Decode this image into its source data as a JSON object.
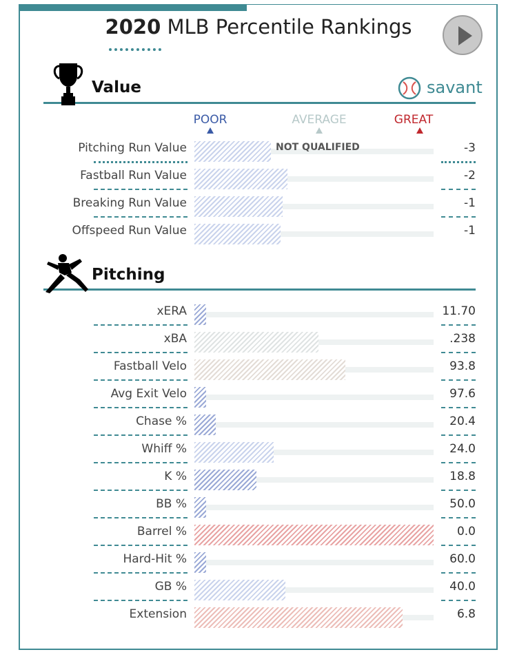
{
  "header": {
    "year": "2020",
    "title_rest": "MLB Percentile Rankings"
  },
  "sections": {
    "value": {
      "title": "Value"
    },
    "pitching": {
      "title": "Pitching"
    }
  },
  "brand": {
    "name": "savant"
  },
  "scale": {
    "poor": "POOR",
    "average": "AVERAGE",
    "great": "GREAT"
  },
  "chart_data": {
    "type": "bar",
    "orientation": "horizontal",
    "xlim": [
      0,
      100
    ],
    "note": "NOT QUALIFIED",
    "value_rows": [
      {
        "label": "Pitching Run Value",
        "percentile": 32,
        "value": "-3",
        "style": "hatch-lblue"
      },
      {
        "label": "Fastball Run Value",
        "percentile": 39,
        "value": "-2",
        "style": "hatch-lblue"
      },
      {
        "label": "Breaking Run Value",
        "percentile": 37,
        "value": "-1",
        "style": "hatch-lblue"
      },
      {
        "label": "Offspeed Run Value",
        "percentile": 36,
        "value": "-1",
        "style": "hatch-lblue"
      }
    ],
    "pitching_rows": [
      {
        "label": "xERA",
        "percentile": 5,
        "value": "11.70",
        "style": "hatch-blue"
      },
      {
        "label": "xBA",
        "percentile": 52,
        "value": ".238",
        "style": "hatch-grey"
      },
      {
        "label": "Fastball Velo",
        "percentile": 63,
        "value": "93.8",
        "style": "hatch-beige"
      },
      {
        "label": "Avg Exit Velo",
        "percentile": 5,
        "value": "97.6",
        "style": "hatch-blue"
      },
      {
        "label": "Chase %",
        "percentile": 9,
        "value": "20.4",
        "style": "hatch-blue"
      },
      {
        "label": "Whiff %",
        "percentile": 33,
        "value": "24.0",
        "style": "hatch-lblue"
      },
      {
        "label": "K %",
        "percentile": 26,
        "value": "18.8",
        "style": "hatch-blue"
      },
      {
        "label": "BB %",
        "percentile": 5,
        "value": "50.0",
        "style": "hatch-blue"
      },
      {
        "label": "Barrel %",
        "percentile": 100,
        "value": "0.0",
        "style": "hatch-red"
      },
      {
        "label": "Hard-Hit %",
        "percentile": 5,
        "value": "60.0",
        "style": "hatch-blue"
      },
      {
        "label": "GB %",
        "percentile": 38,
        "value": "40.0",
        "style": "hatch-lblue"
      },
      {
        "label": "Extension",
        "percentile": 87,
        "value": "6.8",
        "style": "hatch-lred"
      }
    ]
  },
  "colors": {
    "accent": "#3f8a93",
    "poor": "#3a5aa6",
    "average": "#b7c9c9",
    "great": "#c0282e"
  }
}
